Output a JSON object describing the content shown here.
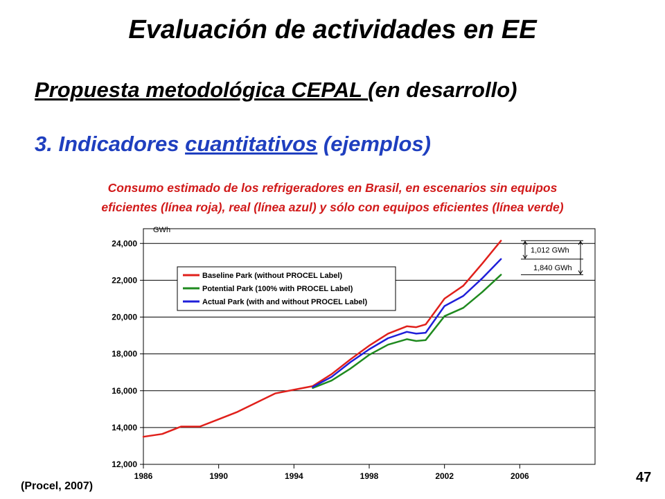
{
  "slide": {
    "title": "Evaluación de actividades en EE",
    "subtitle_underlined": "Propuesta metodológica CEPAL ",
    "subtitle_rest": "(en desarrollo)",
    "section_prefix": "3. Indicadores ",
    "section_underlined": "cuantitativos",
    "section_suffix": " (ejemplos)",
    "caption_line1": "Consumo estimado de los refrigeradores en Brasil, en escenarios sin equipos",
    "caption_line2": "eficientes (línea roja), real (línea azul) y sólo con equipos eficientes (línea verde)",
    "source": "(Procel, 2007)",
    "page_number": "47"
  },
  "chart_data": {
    "type": "line",
    "unit_label": "GWh",
    "xlim": [
      1986,
      2010
    ],
    "ylim": [
      12000,
      24800
    ],
    "x_ticks": [
      1986,
      1990,
      1994,
      1998,
      2002,
      2006
    ],
    "x_tick_labels": [
      "1986",
      "1990",
      "1994",
      "1998",
      "2002",
      "2006"
    ],
    "y_ticks": [
      12000,
      14000,
      16000,
      18000,
      20000,
      22000,
      24000
    ],
    "y_tick_labels": [
      "12,000",
      "14,000",
      "16,000",
      "18,000",
      "20,000",
      "22,000",
      "24,000"
    ],
    "grid": "horizontal",
    "legend_position": "upper-left",
    "series": [
      {
        "name": "Baseline Park (without PROCEL Label)",
        "color": "#e0201b",
        "points": [
          [
            1986.0,
            13500
          ],
          [
            1987.0,
            13650
          ],
          [
            1988.0,
            14050
          ],
          [
            1989.0,
            14050
          ],
          [
            1990.0,
            14450
          ],
          [
            1991.0,
            14850
          ],
          [
            1992.0,
            15350
          ],
          [
            1993.0,
            15850
          ],
          [
            1994.0,
            16050
          ],
          [
            1995.0,
            16250
          ],
          [
            1996.0,
            16900
          ],
          [
            1997.0,
            17700
          ],
          [
            1998.0,
            18450
          ],
          [
            1999.0,
            19100
          ],
          [
            2000.0,
            19500
          ],
          [
            2000.5,
            19450
          ],
          [
            2001.0,
            19600
          ],
          [
            2002.0,
            21000
          ],
          [
            2003.0,
            21700
          ],
          [
            2004.0,
            22900
          ],
          [
            2005.0,
            24150
          ]
        ]
      },
      {
        "name": "Potential Park (100% with PROCEL Label)",
        "color": "#1f8a1f",
        "points": [
          [
            1995.0,
            16150
          ],
          [
            1996.0,
            16550
          ],
          [
            1997.0,
            17200
          ],
          [
            1998.0,
            17950
          ],
          [
            1999.0,
            18500
          ],
          [
            2000.0,
            18800
          ],
          [
            2000.5,
            18700
          ],
          [
            2001.0,
            18750
          ],
          [
            2002.0,
            20050
          ],
          [
            2003.0,
            20500
          ],
          [
            2004.0,
            21350
          ],
          [
            2005.0,
            22300
          ]
        ]
      },
      {
        "name": "Actual Park (with and without PROCEL Label)",
        "color": "#1f1fd9",
        "points": [
          [
            1995.0,
            16200
          ],
          [
            1996.0,
            16750
          ],
          [
            1997.0,
            17550
          ],
          [
            1998.0,
            18250
          ],
          [
            1999.0,
            18850
          ],
          [
            2000.0,
            19200
          ],
          [
            2000.5,
            19100
          ],
          [
            2001.0,
            19150
          ],
          [
            2002.0,
            20600
          ],
          [
            2003.0,
            21150
          ],
          [
            2004.0,
            22100
          ],
          [
            2005.0,
            23150
          ]
        ]
      }
    ],
    "annotations": [
      {
        "text": "1,012 GWh"
      },
      {
        "text": "1,840 GWh"
      }
    ]
  }
}
